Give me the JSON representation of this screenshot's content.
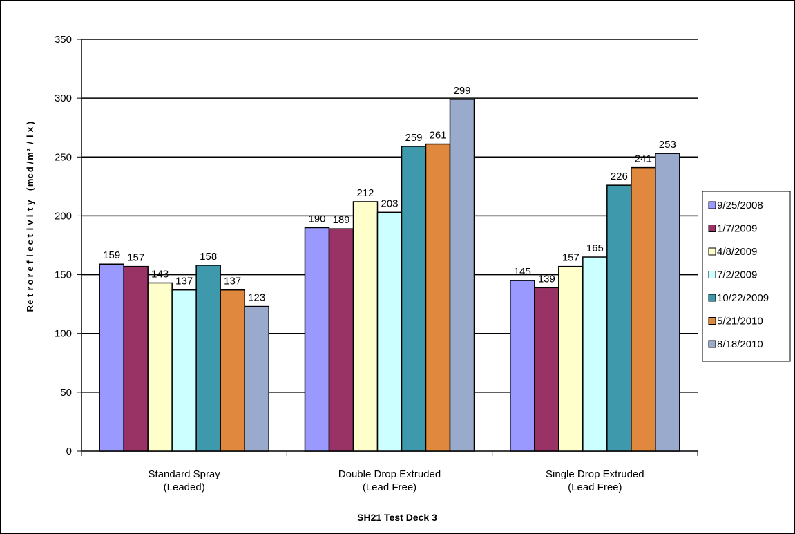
{
  "chart_data": {
    "type": "bar",
    "title": "",
    "xlabel": "SH21 Test Deck 3",
    "ylabel": "Retroreflectivity (mcd/m²/lx)",
    "ylabel_glyphs": [
      "R",
      "e",
      "t",
      "r",
      "o",
      "r",
      "e",
      "f",
      "l",
      "e",
      "c",
      "t",
      "i",
      "v",
      "i",
      "t",
      "y",
      " ",
      "(",
      "m",
      "c",
      "d",
      "/",
      "m",
      "²",
      "/",
      "l",
      "x",
      ")"
    ],
    "ylim": [
      0,
      350
    ],
    "yticks": [
      0,
      50,
      100,
      150,
      200,
      250,
      300,
      350
    ],
    "grid": true,
    "legend_position": "right",
    "categories": [
      [
        "Standard Spray",
        "(Leaded)"
      ],
      [
        "Double Drop Extruded",
        "(Lead Free)"
      ],
      [
        "Single Drop Extruded",
        "(Lead Free)"
      ]
    ],
    "series": [
      {
        "name": "9/25/2008",
        "color": "#9999FF",
        "values": [
          159,
          190,
          145
        ]
      },
      {
        "name": "1/7/2009",
        "color": "#993366",
        "values": [
          157,
          189,
          139
        ]
      },
      {
        "name": "4/8/2009",
        "color": "#FFFFCC",
        "values": [
          143,
          212,
          157
        ]
      },
      {
        "name": "7/2/2009",
        "color": "#CCFFFF",
        "values": [
          137,
          203,
          165
        ]
      },
      {
        "name": "10/22/2009",
        "color": "#3F99AD",
        "values": [
          158,
          259,
          226
        ]
      },
      {
        "name": "5/21/2010",
        "color": "#DF883E",
        "values": [
          137,
          261,
          241
        ]
      },
      {
        "name": "8/18/2010",
        "color": "#99AACC",
        "values": [
          123,
          299,
          253
        ]
      }
    ]
  }
}
